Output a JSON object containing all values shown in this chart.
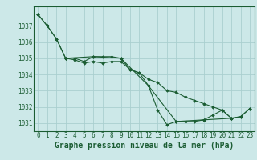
{
  "title": "Graphe pression niveau de la mer (hPa)",
  "bg_color": "#cce8e8",
  "grid_color": "#aacfcf",
  "line_color": "#1a5c32",
  "series": [
    {
      "x": [
        0,
        1,
        2,
        3,
        4,
        5,
        6,
        7,
        8,
        9,
        10,
        11,
        12,
        13,
        14,
        15,
        16,
        17,
        18,
        19,
        20,
        21,
        22,
        23
      ],
      "y": [
        1037.7,
        1037.0,
        1036.2,
        1035.0,
        1035.0,
        1034.8,
        1035.1,
        1035.1,
        1035.1,
        1035.0,
        1034.3,
        1034.1,
        1033.3,
        1031.8,
        1030.9,
        1031.1,
        1031.1,
        1031.1,
        1031.2,
        1031.5,
        1031.8,
        1031.3,
        1031.4,
        1031.9
      ]
    },
    {
      "x": [
        0,
        1,
        2,
        3,
        4,
        5,
        6,
        7,
        8,
        9,
        10,
        11,
        12,
        13,
        14,
        15,
        16,
        17,
        18,
        19,
        20,
        21,
        22,
        23
      ],
      "y": [
        1037.7,
        1037.0,
        1036.2,
        1035.0,
        1034.9,
        1034.7,
        1034.8,
        1034.7,
        1034.8,
        1034.8,
        1034.3,
        1034.1,
        1033.7,
        1033.5,
        1033.0,
        1032.9,
        1032.6,
        1032.4,
        1032.2,
        1032.0,
        1031.8,
        1031.3,
        1031.4,
        1031.9
      ]
    },
    {
      "x": [
        3,
        6,
        9,
        12,
        15,
        18,
        21
      ],
      "y": [
        1035.0,
        1035.1,
        1035.0,
        1033.3,
        1031.1,
        1031.2,
        1031.3
      ]
    }
  ],
  "ylim": [
    1030.5,
    1038.2
  ],
  "yticks": [
    1031,
    1032,
    1033,
    1034,
    1035,
    1036,
    1037
  ],
  "xticks": [
    0,
    1,
    2,
    3,
    4,
    5,
    6,
    7,
    8,
    9,
    10,
    11,
    12,
    13,
    14,
    15,
    16,
    17,
    18,
    19,
    20,
    21,
    22,
    23
  ],
  "xlim": [
    -0.5,
    23.5
  ],
  "marker": "D",
  "markersize": 1.8,
  "linewidth": 0.8,
  "title_fontsize": 7,
  "tick_fontsize": 5.5
}
